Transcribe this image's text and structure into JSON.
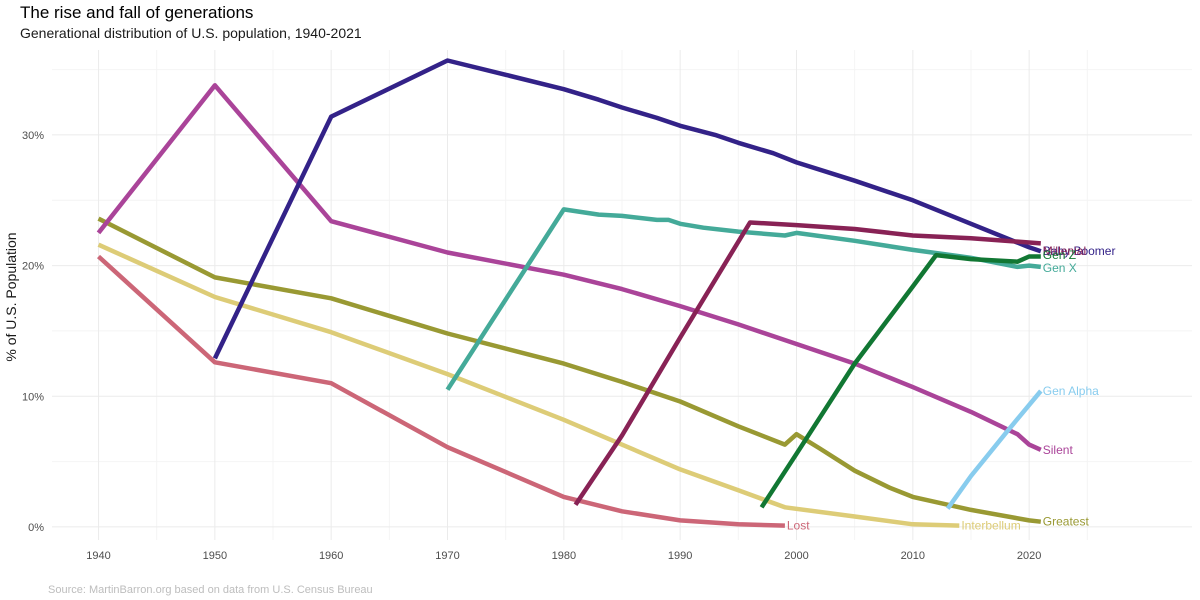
{
  "chart_data": {
    "type": "line",
    "title": "The rise and fall of generations",
    "subtitle": "Generational distribution of U.S. population, 1940-2021",
    "xlabel": "",
    "ylabel": "% of U.S. Population",
    "caption": "Source: MartinBarron.org based on data from U.S. Census Bureau",
    "xlim": [
      1936,
      2034
    ],
    "ylim": [
      -1,
      36.5
    ],
    "x_ticks": [
      1940,
      1950,
      1960,
      1970,
      1980,
      1990,
      2000,
      2010,
      2020
    ],
    "x_tick_labels": [
      "1940",
      "1950",
      "1960",
      "1970",
      "1980",
      "1990",
      "2000",
      "2010",
      "2020"
    ],
    "y_ticks": [
      0,
      10,
      20,
      30
    ],
    "y_tick_labels": [
      "0%",
      "10%",
      "20%",
      "30%"
    ],
    "grid": true,
    "legend": "direct labels at line ends",
    "series": [
      {
        "name": "Lost",
        "color": "#cc6677",
        "x": [
          1940,
          1950,
          1960,
          1970,
          1980,
          1985,
          1990,
          1995,
          1999
        ],
        "y": [
          20.7,
          12.6,
          11.0,
          6.1,
          2.3,
          1.2,
          0.5,
          0.2,
          0.1
        ]
      },
      {
        "name": "Interbellum",
        "color": "#ddcc77",
        "x": [
          1940,
          1950,
          1960,
          1970,
          1980,
          1990,
          1995,
          1999,
          2005,
          2010,
          2014
        ],
        "y": [
          21.6,
          17.6,
          14.9,
          11.7,
          8.2,
          4.4,
          2.8,
          1.5,
          0.8,
          0.2,
          0.1
        ]
      },
      {
        "name": "Greatest",
        "color": "#999933",
        "x": [
          1940,
          1950,
          1960,
          1970,
          1980,
          1985,
          1990,
          1995,
          1999,
          2000,
          2002,
          2005,
          2008,
          2010,
          2015,
          2020,
          2021
        ],
        "y": [
          23.6,
          19.1,
          17.5,
          14.8,
          12.5,
          11.1,
          9.6,
          7.7,
          6.3,
          7.1,
          6.0,
          4.3,
          3.0,
          2.3,
          1.3,
          0.5,
          0.4
        ]
      },
      {
        "name": "Silent",
        "color": "#aa4499",
        "x": [
          1940,
          1950,
          1960,
          1970,
          1980,
          1985,
          1990,
          1995,
          2000,
          2005,
          2010,
          2015,
          2019,
          2020,
          2021
        ],
        "y": [
          22.5,
          33.8,
          23.4,
          21.0,
          19.3,
          18.2,
          16.9,
          15.5,
          14.0,
          12.5,
          10.7,
          8.8,
          7.1,
          6.3,
          5.9
        ]
      },
      {
        "name": "Baby Boomer",
        "color": "#332288",
        "x": [
          1950,
          1960,
          1970,
          1975,
          1980,
          1983,
          1985,
          1988,
          1990,
          1993,
          1995,
          1998,
          2000,
          2005,
          2010,
          2015,
          2020,
          2021
        ],
        "y": [
          12.9,
          31.4,
          35.7,
          34.6,
          33.5,
          32.7,
          32.1,
          31.3,
          30.7,
          30.0,
          29.4,
          28.6,
          27.9,
          26.5,
          25.0,
          23.2,
          21.4,
          21.1
        ]
      },
      {
        "name": "Gen X",
        "color": "#44aa99",
        "x": [
          1970,
          1980,
          1983,
          1985,
          1988,
          1989,
          1990,
          1992,
          1995,
          1999,
          2000,
          2005,
          2010,
          2015,
          2019,
          2020,
          2021
        ],
        "y": [
          10.5,
          24.3,
          23.9,
          23.8,
          23.5,
          23.5,
          23.2,
          22.9,
          22.6,
          22.3,
          22.5,
          21.9,
          21.2,
          20.6,
          19.9,
          20.0,
          19.9
        ]
      },
      {
        "name": "Millenial",
        "color": "#882255",
        "x": [
          1981,
          1985,
          1990,
          1996,
          2000,
          2005,
          2010,
          2015,
          2021
        ],
        "y": [
          1.7,
          7.0,
          14.5,
          23.3,
          23.1,
          22.8,
          22.3,
          22.1,
          21.7
        ]
      },
      {
        "name": "Gen Z",
        "color": "#117733",
        "x": [
          1997,
          2000,
          2005,
          2010,
          2012,
          2015,
          2019,
          2020,
          2021
        ],
        "y": [
          1.5,
          5.6,
          12.5,
          18.4,
          20.8,
          20.5,
          20.3,
          20.7,
          20.7
        ]
      },
      {
        "name": "Gen Alpha",
        "color": "#88ccee",
        "x": [
          2013,
          2015,
          2018,
          2021
        ],
        "y": [
          1.4,
          3.9,
          7.2,
          10.4
        ]
      }
    ]
  }
}
